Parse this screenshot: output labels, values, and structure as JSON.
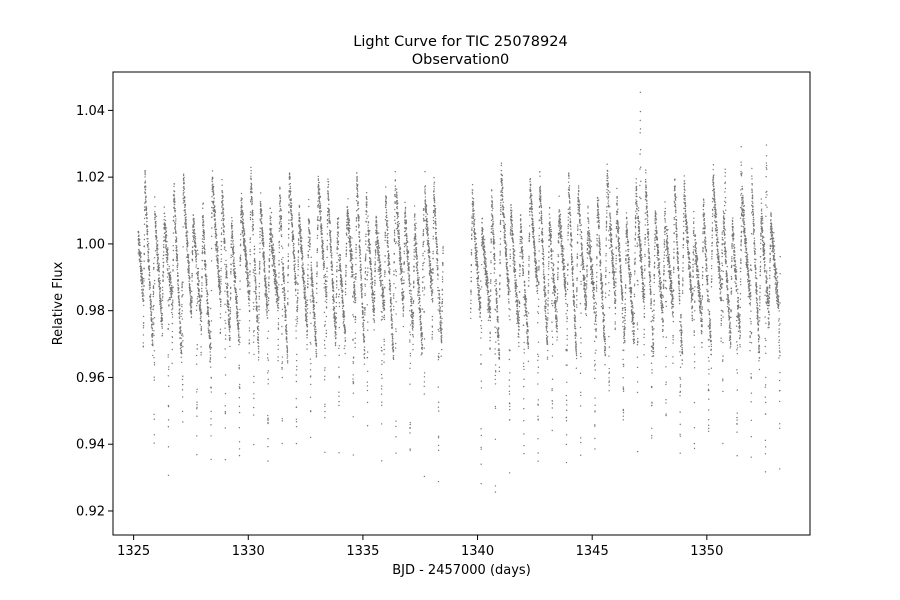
{
  "chart_data": {
    "type": "scatter",
    "title": "Light Curve for TIC 25078924",
    "subtitle": "Observation0",
    "xlabel": "BJD - 2457000 (days)",
    "ylabel": "Relative Flux",
    "xlim": [
      1324.1,
      1354.5
    ],
    "ylim": [
      0.9128,
      1.0515
    ],
    "x_ticks": [
      1325,
      1330,
      1335,
      1340,
      1345,
      1350
    ],
    "y_ticks": [
      0.92,
      0.94,
      0.96,
      0.98,
      1.0,
      1.02,
      1.04
    ],
    "y_tick_labels": [
      "0.92",
      "0.94",
      "0.96",
      "0.98",
      "1.00",
      "1.02",
      "1.04"
    ],
    "grid": false,
    "marker_color": "#777777",
    "observation_segments": [
      [
        1325.2,
        1338.5
      ],
      [
        1339.7,
        1353.2
      ]
    ],
    "baseline_flux": 1.0,
    "oscillation_period_days": 0.42,
    "high_flux_range": [
      1.006,
      1.021
    ],
    "low_flux_range": [
      0.966,
      0.985
    ],
    "eclipse_depths": [
      0.921,
      0.922,
      0.927,
      0.926,
      0.927,
      0.926,
      0.926,
      0.928,
      0.928,
      0.93,
      0.934,
      0.931,
      0.933,
      0.933,
      0.931,
      0.928,
      0.929,
      0.932,
      0.926,
      0.923,
      0.921,
      0.921,
      0.922
    ],
    "flare_events": [
      {
        "x": 1347.1,
        "y": 1.044
      },
      {
        "x": 1352.6,
        "y": 1.029
      },
      {
        "x": 1351.5,
        "y": 1.027
      },
      {
        "x": 1350.8,
        "y": 1.022
      }
    ],
    "series": [
      {
        "values": [],
        "color": "#777777"
      }
    ]
  }
}
